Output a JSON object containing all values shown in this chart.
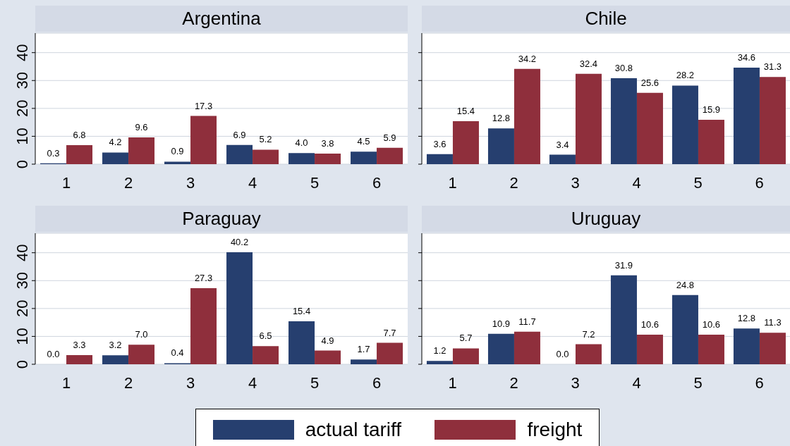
{
  "chart_data": [
    {
      "type": "bar",
      "title": "Argentina",
      "categories": [
        "1",
        "2",
        "3",
        "4",
        "5",
        "6"
      ],
      "ylim": [
        0,
        47
      ],
      "yticks": [
        0,
        10,
        20,
        30,
        40
      ],
      "grid": "y",
      "legend": "bottom",
      "series": [
        {
          "name": "actual tariff",
          "color": "#263f6f",
          "values": [
            0.3,
            4.2,
            0.9,
            6.9,
            4.0,
            4.5
          ],
          "value_labels": [
            "0.3",
            "4.2",
            "0.9",
            "6.9",
            "4.0",
            "4.5"
          ]
        },
        {
          "name": "freight",
          "color": "#8f2f3c",
          "values": [
            6.8,
            9.6,
            17.3,
            5.2,
            3.8,
            5.9
          ],
          "value_labels": [
            "6.8",
            "9.6",
            "17.3",
            "5.2",
            "3.8",
            "5.9"
          ]
        }
      ]
    },
    {
      "type": "bar",
      "title": "Chile",
      "categories": [
        "1",
        "2",
        "3",
        "4",
        "5",
        "6"
      ],
      "ylim": [
        0,
        47
      ],
      "yticks": [
        0,
        10,
        20,
        30,
        40
      ],
      "grid": "y",
      "tick_labels": "x",
      "legend": "bottom",
      "series": [
        {
          "name": "actual tariff",
          "color": "#263f6f",
          "values": [
            3.6,
            12.8,
            3.4,
            30.8,
            28.2,
            34.6
          ],
          "value_labels": [
            "3.6",
            "12.8",
            "3.4",
            "30.8",
            "28.2",
            "34.6"
          ]
        },
        {
          "name": "freight",
          "color": "#8f2f3c",
          "values": [
            15.4,
            34.2,
            32.4,
            25.6,
            15.9,
            31.3
          ],
          "value_labels": [
            "15.4",
            "34.2",
            "32.4",
            "25.6",
            "15.9",
            "31.3"
          ]
        }
      ]
    },
    {
      "type": "bar",
      "title": "Paraguay",
      "categories": [
        "1",
        "2",
        "3",
        "4",
        "5",
        "6"
      ],
      "ylim": [
        0,
        47
      ],
      "yticks": [
        0,
        10,
        20,
        30,
        40
      ],
      "grid": "y",
      "legend": "bottom",
      "series": [
        {
          "name": "actual tariff",
          "color": "#263f6f",
          "values": [
            0.0,
            3.2,
            0.4,
            40.2,
            15.4,
            1.7
          ],
          "value_labels": [
            "0.0",
            "3.2",
            "0.4",
            "40.2",
            "15.4",
            "1.7"
          ]
        },
        {
          "name": "freight",
          "color": "#8f2f3c",
          "values": [
            3.3,
            7.0,
            27.3,
            6.5,
            4.9,
            7.7
          ],
          "value_labels": [
            "3.3",
            "7.0",
            "27.3",
            "6.5",
            "4.9",
            "7.7"
          ]
        }
      ]
    },
    {
      "type": "bar",
      "title": "Uruguay",
      "categories": [
        "1",
        "2",
        "3",
        "4",
        "5",
        "6"
      ],
      "ylim": [
        0,
        47
      ],
      "yticks": [
        0,
        10,
        20,
        30,
        40
      ],
      "grid": "y",
      "tick_labels": "x",
      "legend": "bottom",
      "series": [
        {
          "name": "actual tariff",
          "color": "#263f6f",
          "values": [
            1.2,
            10.9,
            0.0,
            31.9,
            24.8,
            12.8
          ],
          "value_labels": [
            "1.2",
            "10.9",
            "0.0",
            "31.9",
            "24.8",
            "12.8"
          ]
        },
        {
          "name": "freight",
          "color": "#8f2f3c",
          "values": [
            5.7,
            11.7,
            7.2,
            10.6,
            10.6,
            11.3
          ],
          "value_labels": [
            "5.7",
            "11.7",
            "7.2",
            "10.6",
            "10.6",
            "11.3"
          ]
        }
      ]
    }
  ]
}
